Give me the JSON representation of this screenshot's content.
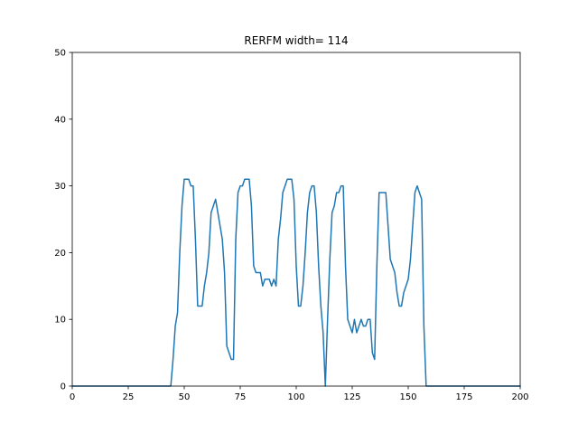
{
  "chart_data": {
    "type": "line",
    "title": "RERFM width= 114",
    "xlabel": "",
    "ylabel": "",
    "xlim": [
      0,
      200
    ],
    "ylim": [
      0,
      50
    ],
    "xticks": [
      0,
      25,
      50,
      75,
      100,
      125,
      150,
      175,
      200
    ],
    "xtick_labels": [
      "0",
      "25",
      "50",
      "75",
      "100",
      "125",
      "150",
      "175",
      "200"
    ],
    "yticks": [
      0,
      10,
      20,
      30,
      40,
      50
    ],
    "ytick_labels": [
      "0",
      "10",
      "20",
      "30",
      "40",
      "50"
    ],
    "grid": false,
    "legend": "none",
    "series": [
      {
        "color": "#1f77b4",
        "x": [
          0,
          44,
          45,
          46,
          47,
          48,
          49,
          50,
          51,
          52,
          53,
          54,
          55,
          56,
          57,
          58,
          59,
          60,
          61,
          62,
          63,
          64,
          65,
          66,
          67,
          68,
          69,
          70,
          71,
          72,
          73,
          74,
          75,
          76,
          77,
          78,
          79,
          80,
          81,
          82,
          83,
          84,
          85,
          86,
          87,
          88,
          89,
          90,
          91,
          92,
          93,
          94,
          95,
          96,
          97,
          98,
          99,
          100,
          101,
          102,
          103,
          104,
          105,
          106,
          107,
          108,
          109,
          110,
          111,
          112,
          113,
          114,
          115,
          116,
          117,
          118,
          119,
          120,
          121,
          122,
          123,
          124,
          125,
          126,
          127,
          128,
          129,
          130,
          131,
          132,
          133,
          134,
          135,
          136,
          137,
          138,
          139,
          140,
          141,
          142,
          143,
          144,
          145,
          146,
          147,
          148,
          149,
          150,
          151,
          152,
          153,
          154,
          155,
          156,
          157,
          158,
          200
        ],
        "y": [
          0,
          0,
          4,
          9,
          11,
          20,
          27,
          31,
          31,
          31,
          30,
          30,
          22,
          12,
          12,
          12,
          15,
          17,
          20,
          26,
          27,
          28,
          26,
          24,
          22,
          17,
          6,
          5,
          4,
          4,
          22,
          29,
          30,
          30,
          31,
          31,
          31,
          27,
          18,
          17,
          17,
          17,
          15,
          16,
          16,
          16,
          15,
          16,
          15,
          22,
          25,
          29,
          30,
          31,
          31,
          31,
          28,
          18,
          12,
          12,
          15,
          20,
          26,
          29,
          30,
          30,
          26,
          18,
          12,
          8,
          0,
          10,
          19,
          26,
          27,
          29,
          29,
          30,
          30,
          18,
          10,
          9,
          8,
          10,
          8,
          9,
          10,
          9,
          9,
          10,
          10,
          5,
          4,
          18,
          29,
          29,
          29,
          29,
          24,
          19,
          18,
          17,
          14,
          12,
          12,
          14,
          15,
          16,
          19,
          24,
          29,
          30,
          29,
          28,
          9,
          0,
          0
        ]
      }
    ]
  }
}
